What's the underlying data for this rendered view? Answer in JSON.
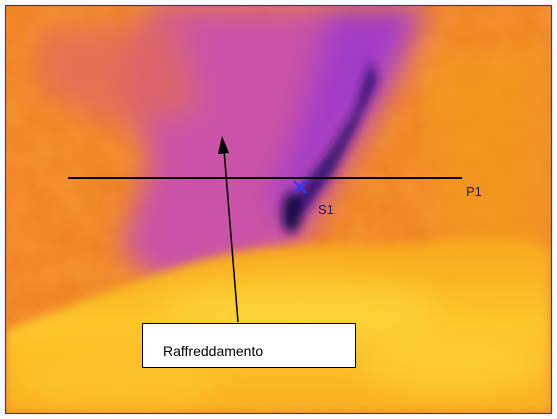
{
  "labels": {
    "profile": "P1",
    "spot": "S1",
    "callout": "Raffreddamento"
  }
}
